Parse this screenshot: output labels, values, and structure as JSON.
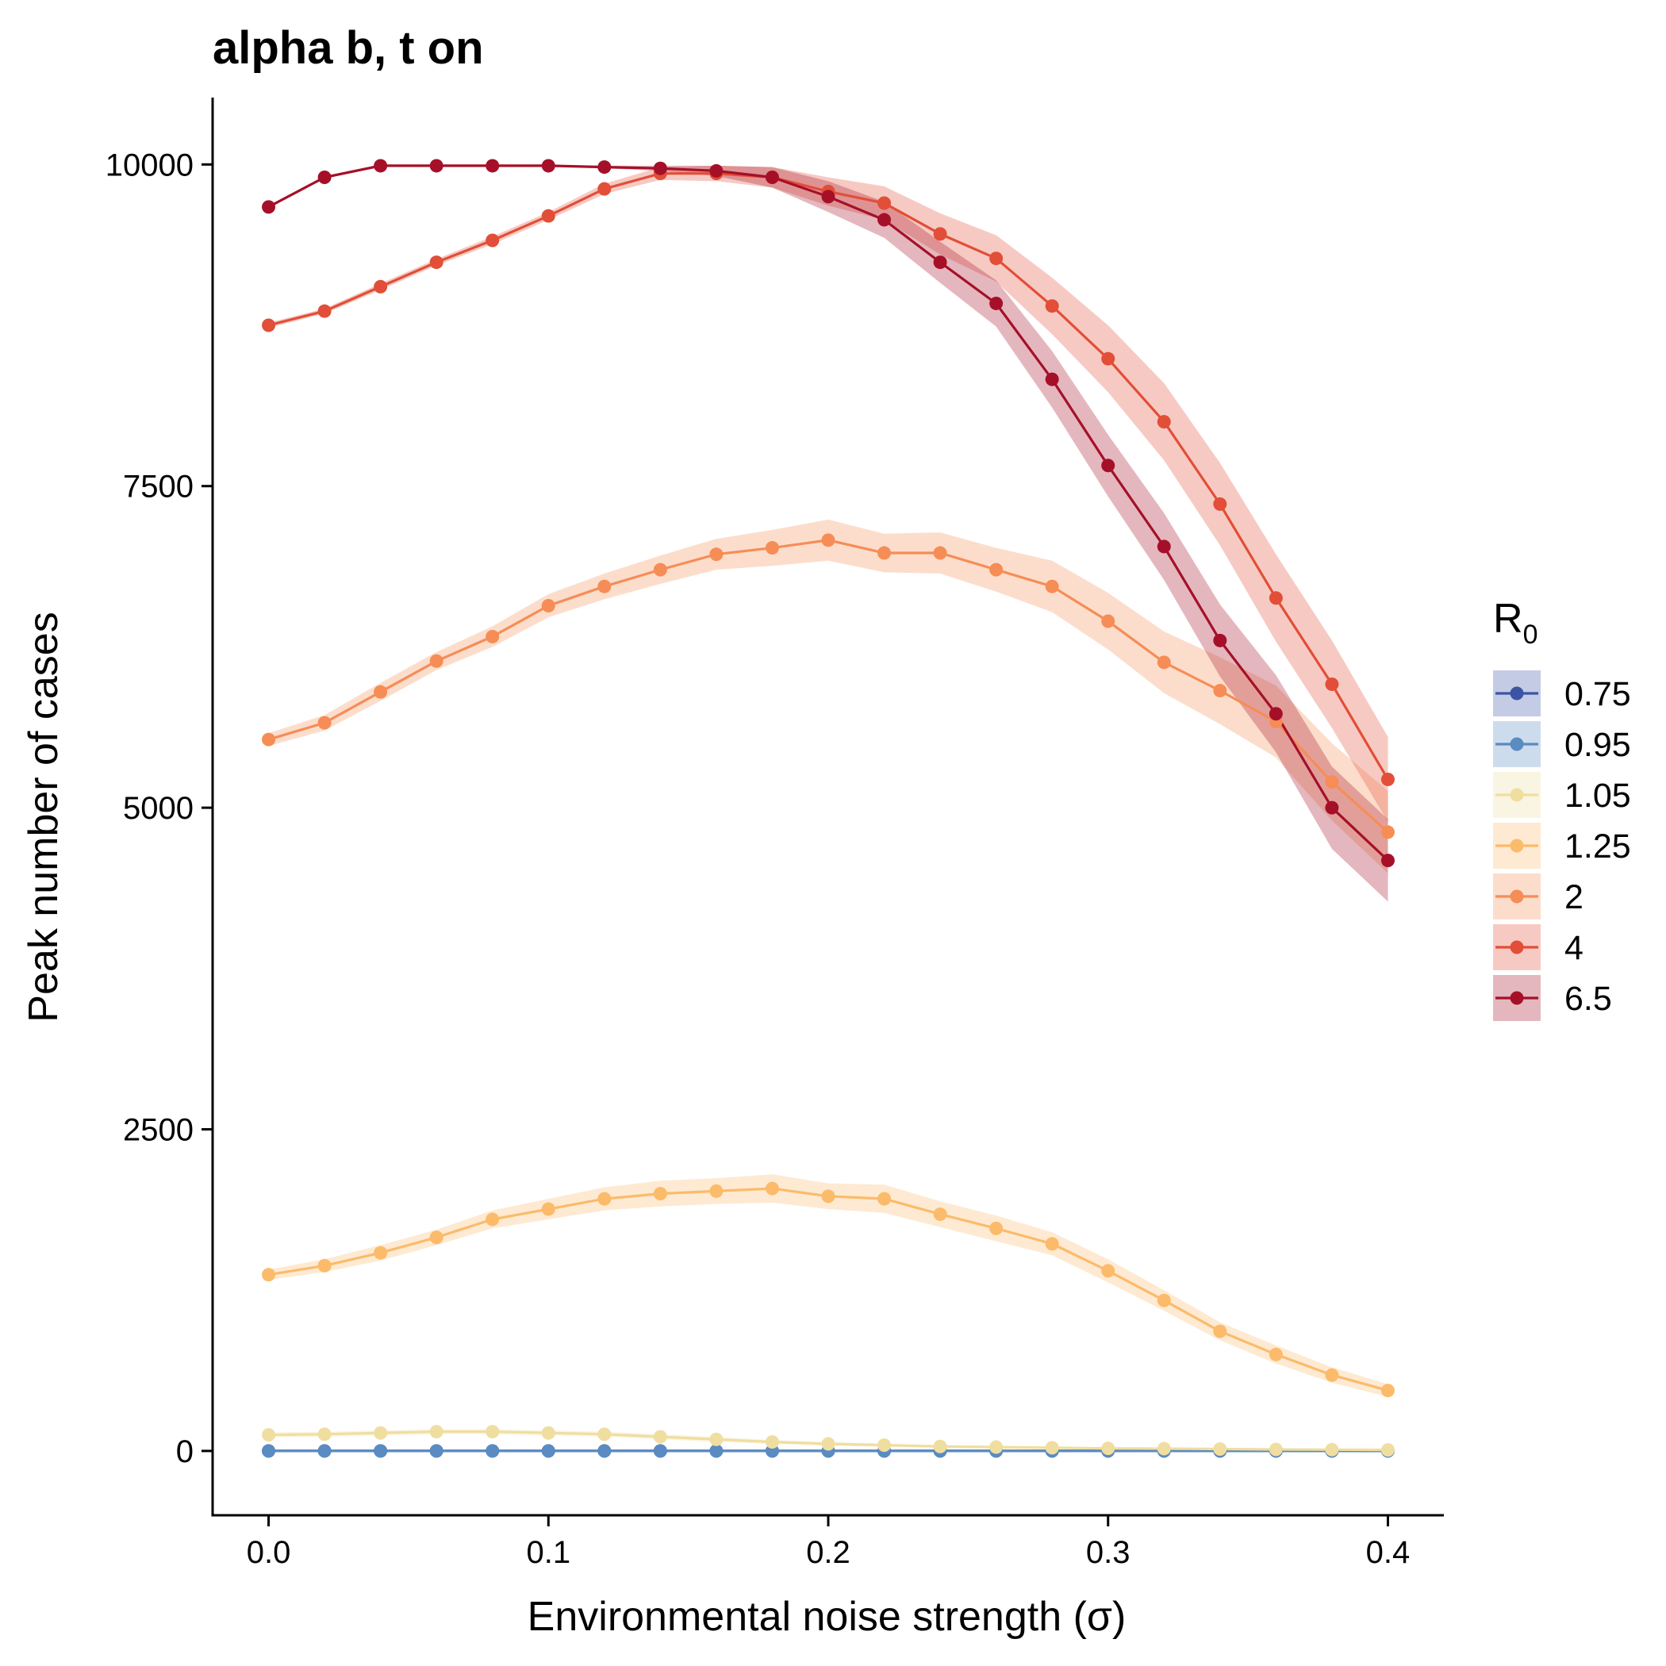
{
  "chart_data": {
    "type": "line",
    "title": "alpha b, t on",
    "xlabel": "Environmental noise strength (σ)",
    "ylabel": "Peak number of cases",
    "xlim": [
      -0.02,
      0.42
    ],
    "ylim": [
      -500,
      10520
    ],
    "x_ticks": [
      0.0,
      0.1,
      0.2,
      0.3,
      0.4
    ],
    "x_tick_labels": [
      "0.0",
      "0.1",
      "0.2",
      "0.3",
      "0.4"
    ],
    "y_ticks": [
      0,
      2500,
      5000,
      7500,
      10000
    ],
    "y_tick_labels": [
      "0",
      "2500",
      "5000",
      "7500",
      "10000"
    ],
    "grid": false,
    "legend": {
      "title": "R",
      "title_subscript": "0",
      "position": "right"
    },
    "x": [
      0.0,
      0.02,
      0.04,
      0.06,
      0.08,
      0.1,
      0.12,
      0.14,
      0.16,
      0.18,
      0.2,
      0.22,
      0.24,
      0.26,
      0.28,
      0.3,
      0.32,
      0.34,
      0.36,
      0.38,
      0.4
    ],
    "series": [
      {
        "name": "0.75",
        "color": "#3b54a4",
        "values": [
          0,
          0,
          0,
          0,
          0,
          0,
          0,
          0,
          0,
          0,
          0,
          0,
          0,
          0,
          0,
          0,
          0,
          0,
          0,
          0,
          0
        ],
        "band": [
          0,
          0,
          0,
          0,
          0,
          0,
          0,
          0,
          0,
          0,
          0,
          0,
          0,
          0,
          0,
          0,
          0,
          0,
          0,
          0,
          0
        ]
      },
      {
        "name": "0.95",
        "color": "#5a8bc2",
        "values": [
          0,
          0,
          0,
          0,
          0,
          0,
          0,
          0,
          0,
          0,
          0,
          0,
          0,
          0,
          0,
          0,
          0,
          0,
          0,
          0,
          0
        ],
        "band": [
          5,
          5,
          5,
          5,
          5,
          5,
          5,
          5,
          5,
          5,
          5,
          5,
          5,
          5,
          5,
          5,
          5,
          5,
          5,
          5,
          5
        ]
      },
      {
        "name": "1.05",
        "color": "#f0dea0",
        "values": [
          125,
          130,
          140,
          150,
          150,
          140,
          130,
          110,
          90,
          70,
          55,
          45,
          35,
          30,
          25,
          20,
          18,
          15,
          12,
          10,
          8
        ],
        "band": [
          20,
          20,
          20,
          20,
          20,
          20,
          20,
          20,
          20,
          15,
          15,
          12,
          10,
          10,
          8,
          8,
          6,
          6,
          5,
          5,
          5
        ]
      },
      {
        "name": "1.25",
        "color": "#fbbb6b",
        "values": [
          1370,
          1440,
          1540,
          1660,
          1800,
          1880,
          1960,
          2000,
          2020,
          2040,
          1980,
          1960,
          1840,
          1730,
          1610,
          1400,
          1170,
          930,
          750,
          590,
          470
        ],
        "band": [
          40,
          50,
          60,
          60,
          70,
          80,
          90,
          100,
          100,
          110,
          100,
          110,
          100,
          100,
          90,
          90,
          80,
          70,
          70,
          60,
          50
        ]
      },
      {
        "name": "2",
        "color": "#f68d56",
        "values": [
          5530,
          5660,
          5900,
          6140,
          6330,
          6570,
          6720,
          6850,
          6970,
          7020,
          7080,
          6980,
          6980,
          6850,
          6720,
          6450,
          6130,
          5910,
          5670,
          5200,
          4810
        ],
        "band": [
          50,
          60,
          70,
          70,
          80,
          90,
          100,
          110,
          120,
          140,
          160,
          150,
          160,
          170,
          200,
          220,
          240,
          260,
          280,
          300,
          320
        ]
      },
      {
        "name": "4",
        "color": "#e24e37",
        "values": [
          8750,
          8860,
          9050,
          9240,
          9410,
          9600,
          9810,
          9930,
          9930,
          9900,
          9790,
          9700,
          9460,
          9270,
          8900,
          8490,
          8000,
          7360,
          6630,
          5960,
          5220
        ],
        "band": [
          20,
          20,
          25,
          25,
          30,
          30,
          40,
          50,
          60,
          80,
          110,
          130,
          160,
          180,
          220,
          260,
          300,
          320,
          340,
          340,
          330
        ]
      },
      {
        "name": "6.5",
        "color": "#a51028",
        "values": [
          9670,
          9900,
          9990,
          9990,
          9990,
          9990,
          9980,
          9970,
          9950,
          9900,
          9750,
          9570,
          9240,
          8920,
          8330,
          7660,
          7030,
          6300,
          5730,
          5000,
          4590
        ],
        "band": [
          10,
          10,
          5,
          5,
          5,
          5,
          10,
          20,
          40,
          80,
          120,
          140,
          160,
          180,
          220,
          240,
          260,
          280,
          300,
          320,
          320
        ]
      }
    ]
  }
}
